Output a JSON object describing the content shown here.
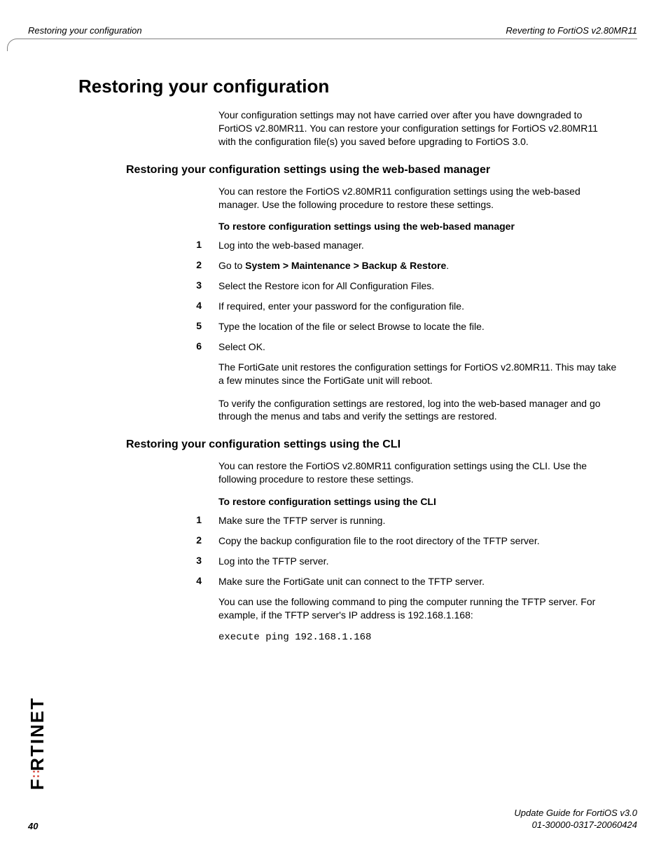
{
  "header": {
    "left": "Restoring your configuration",
    "right": "Reverting to FortiOS v2.80MR11"
  },
  "title": "Restoring your configuration",
  "intro": "Your configuration settings may not have carried over after you have downgraded to FortiOS v2.80MR11. You can restore your configuration settings for FortiOS v2.80MR11 with the configuration file(s) you saved before upgrading to FortiOS 3.0.",
  "section1": {
    "heading": "Restoring your configuration settings using the web-based manager",
    "intro": "You can restore the FortiOS v2.80MR11 configuration settings using the web-based manager. Use the following procedure to restore these settings.",
    "proc_title": "To restore configuration settings using the web-based manager",
    "steps": {
      "s1": "Log into the web-based manager.",
      "s2_pre": "Go to ",
      "s2_bold": "System > Maintenance > Backup & Restore",
      "s2_post": ".",
      "s3": "Select the Restore icon for All Configuration Files.",
      "s4": "If required, enter your password for the configuration file.",
      "s5": "Type the location of the file or select Browse to locate the file.",
      "s6": "Select OK."
    },
    "after1": "The FortiGate unit restores the configuration settings for FortiOS v2.80MR11. This may take a few minutes since the FortiGate unit will reboot.",
    "after2": "To verify the configuration settings are restored, log into the web-based manager and go through the menus and tabs and verify the settings are restored."
  },
  "section2": {
    "heading": "Restoring your configuration settings using the CLI",
    "intro": "You can restore the FortiOS v2.80MR11 configuration settings using the CLI. Use the following procedure to restore these settings.",
    "proc_title": "To restore configuration settings using the CLI",
    "steps": {
      "s1": "Make sure the TFTP server is running.",
      "s2": "Copy the backup configuration file to the root directory of the TFTP server.",
      "s3": "Log into the TFTP server.",
      "s4": "Make sure the FortiGate unit can connect to the TFTP server."
    },
    "after1": "You can use the following command to ping the computer running the TFTP server. For example, if the TFTP server's IP address is 192.168.1.168:",
    "code": "execute ping 192.168.1.168"
  },
  "nums": {
    "n1": "1",
    "n2": "2",
    "n3": "3",
    "n4": "4",
    "n5": "5",
    "n6": "6"
  },
  "footer": {
    "page": "40",
    "right1": "Update Guide for FortiOS v3.0",
    "right2": "01-30000-0317-20060424"
  },
  "logo": {
    "pre": "F",
    "post": "RTINET"
  }
}
